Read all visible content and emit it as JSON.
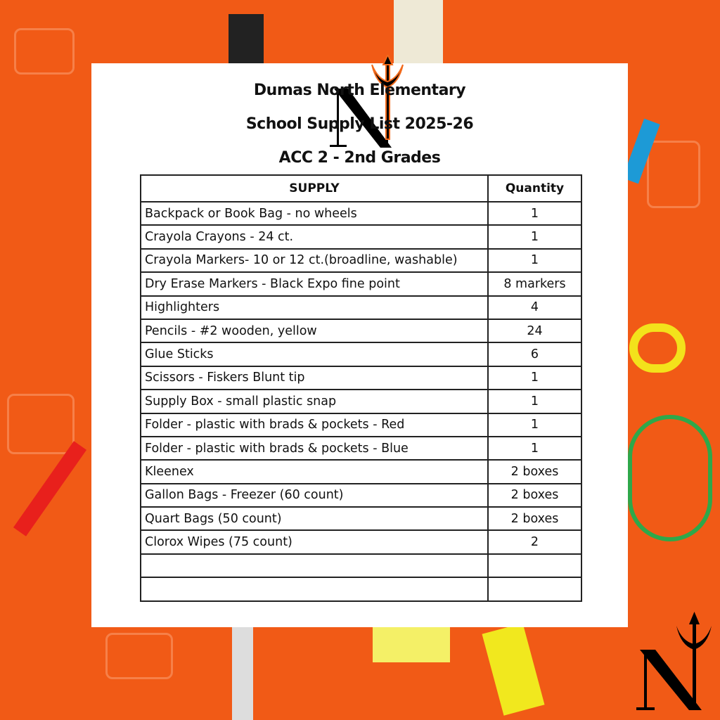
{
  "header": {
    "line1": "Dumas North Elementary",
    "line2": "School Supply List 2025-26",
    "line3": "ACC 2 - 2nd Grades"
  },
  "table": {
    "columns": [
      "SUPPLY",
      "Quantity"
    ],
    "rows": [
      {
        "supply": "Backpack or Book Bag - no wheels",
        "quantity": "1"
      },
      {
        "supply": "Crayola Crayons - 24 ct.",
        "quantity": "1"
      },
      {
        "supply": "Crayola Markers- 10 or 12 ct.(broadline, washable)",
        "quantity": "1"
      },
      {
        "supply": "Dry Erase Markers - Black Expo fine point",
        "quantity": "8 markers"
      },
      {
        "supply": "Highlighters",
        "quantity": "4"
      },
      {
        "supply": "Pencils - #2 wooden, yellow",
        "quantity": "24"
      },
      {
        "supply": "Glue Sticks",
        "quantity": "6"
      },
      {
        "supply": "Scissors - Fiskers Blunt tip",
        "quantity": "1"
      },
      {
        "supply": "Supply Box - small plastic snap",
        "quantity": "1"
      },
      {
        "supply": "Folder - plastic with brads & pockets - Red",
        "quantity": "1"
      },
      {
        "supply": "Folder - plastic with brads & pockets - Blue",
        "quantity": "1"
      },
      {
        "supply": "Kleenex",
        "quantity": "2 boxes"
      },
      {
        "supply": "Gallon Bags - Freezer (60 count)",
        "quantity": "2 boxes"
      },
      {
        "supply": "Quart Bags  (50 count)",
        "quantity": "2 boxes"
      },
      {
        "supply": "Clorox Wipes (75 count)",
        "quantity": "2"
      },
      {
        "supply": "",
        "quantity": ""
      },
      {
        "supply": "",
        "quantity": ""
      }
    ]
  },
  "logo": {
    "letter": "N",
    "icon": "trident-icon"
  },
  "colors": {
    "background": "#f15a16",
    "card": "#ffffff",
    "accent": "#f26a1b"
  }
}
